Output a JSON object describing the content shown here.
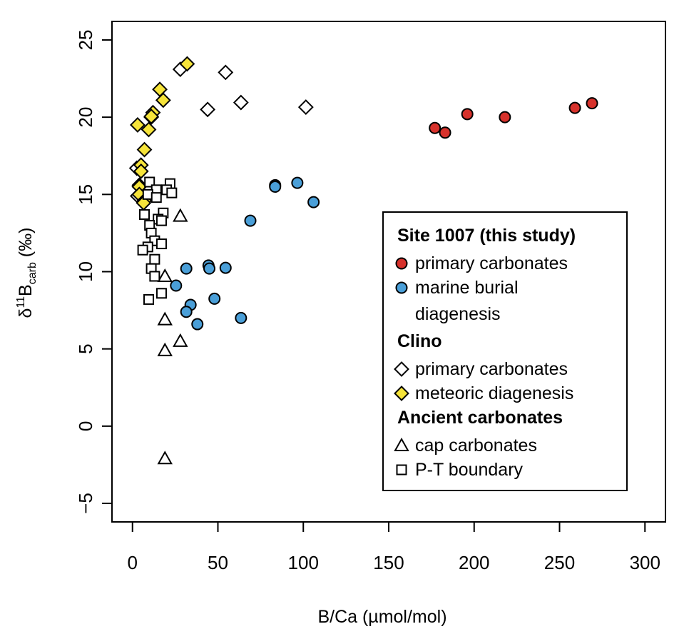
{
  "chart_data": {
    "type": "scatter",
    "title": "",
    "xlabel": "B/Ca (µmol/mol)",
    "ylabel": {
      "prefix": "δ",
      "superscript": "11",
      "main": "B",
      "subscript": "carb",
      "suffix": " (‰)"
    },
    "xlim": [
      -12,
      312
    ],
    "ylim": [
      -6.2,
      26.2
    ],
    "xticks": [
      0,
      50,
      100,
      150,
      200,
      250,
      300
    ],
    "yticks": [
      -5,
      0,
      5,
      10,
      15,
      20,
      25
    ],
    "grid": false,
    "legend_position": "center-right",
    "series": [
      {
        "name": "primary carbonates",
        "group": "Site 1007 (this study)",
        "marker": "circle",
        "color": "#d7322c",
        "points": [
          [
            177,
            19.3
          ],
          [
            183,
            19.0
          ],
          [
            196,
            20.2
          ],
          [
            218,
            20.0
          ],
          [
            259,
            20.6
          ],
          [
            269,
            20.9
          ]
        ]
      },
      {
        "name": "marine burial diagenesis",
        "group": "Site 1007 (this study)",
        "marker": "circle",
        "color": "#4a9fd8",
        "points": [
          [
            83.5,
            15.6
          ],
          [
            83.5,
            15.5
          ],
          [
            96.5,
            15.75
          ],
          [
            106,
            14.5
          ],
          [
            69,
            13.3
          ],
          [
            31.5,
            10.2
          ],
          [
            44.5,
            10.4
          ],
          [
            45,
            10.2
          ],
          [
            54.5,
            10.25
          ],
          [
            25.5,
            9.1
          ],
          [
            48,
            8.25
          ],
          [
            34,
            7.85
          ],
          [
            31.5,
            7.4
          ],
          [
            38,
            6.6
          ],
          [
            63.5,
            7.0
          ]
        ]
      },
      {
        "name": "primary carbonates",
        "group": "Clino",
        "marker": "diamond",
        "color": "#ffffff",
        "points": [
          [
            28,
            23.1
          ],
          [
            54.5,
            22.9
          ],
          [
            44,
            20.5
          ],
          [
            63.5,
            20.95
          ],
          [
            101.5,
            20.65
          ],
          [
            11,
            20.0
          ],
          [
            2.5,
            16.7
          ],
          [
            4,
            15.6
          ],
          [
            3,
            14.9
          ]
        ]
      },
      {
        "name": "meteoric diagenesis",
        "group": "Clino",
        "marker": "diamond",
        "color": "#f6e43a",
        "points": [
          [
            32,
            23.45
          ],
          [
            16,
            21.8
          ],
          [
            18,
            21.1
          ],
          [
            12,
            20.3
          ],
          [
            11,
            20.05
          ],
          [
            3,
            19.5
          ],
          [
            9.5,
            19.2
          ],
          [
            7,
            17.9
          ],
          [
            5,
            16.9
          ],
          [
            5,
            16.5
          ],
          [
            4,
            15.5
          ],
          [
            4,
            15.0
          ],
          [
            7,
            14.6
          ],
          [
            6.5,
            14.45
          ]
        ]
      },
      {
        "name": "cap carbonates",
        "group": "Ancient carbonates",
        "marker": "triangle",
        "color": "#ffffff",
        "points": [
          [
            28,
            13.6
          ],
          [
            19,
            9.7
          ],
          [
            19,
            6.9
          ],
          [
            28,
            5.5
          ],
          [
            19,
            4.9
          ],
          [
            19,
            -2.1
          ]
        ]
      },
      {
        "name": "P-T boundary",
        "group": "Ancient carbonates",
        "marker": "square",
        "color": "#ffffff",
        "points": [
          [
            10,
            15.8
          ],
          [
            22,
            15.7
          ],
          [
            14,
            15.3
          ],
          [
            20,
            15.3
          ],
          [
            23,
            15.1
          ],
          [
            9,
            15.0
          ],
          [
            14,
            14.8
          ],
          [
            7,
            13.7
          ],
          [
            18,
            13.8
          ],
          [
            15,
            13.4
          ],
          [
            17,
            13.3
          ],
          [
            10,
            13.0
          ],
          [
            11,
            12.5
          ],
          [
            13,
            12.0
          ],
          [
            9,
            11.6
          ],
          [
            17,
            11.8
          ],
          [
            6,
            11.4
          ],
          [
            13,
            10.8
          ],
          [
            11,
            10.2
          ],
          [
            13,
            9.7
          ],
          [
            17,
            8.6
          ],
          [
            9.5,
            8.2
          ]
        ]
      }
    ],
    "legend": [
      {
        "kind": "heading",
        "text": "Site 1007 (this study)"
      },
      {
        "kind": "entry",
        "marker": "circle",
        "color": "#d7322c",
        "text": "primary carbonates"
      },
      {
        "kind": "entry",
        "marker": "circle",
        "color": "#4a9fd8",
        "text": "marine burial"
      },
      {
        "kind": "continuation",
        "text": "diagenesis"
      },
      {
        "kind": "heading",
        "text": "Clino"
      },
      {
        "kind": "entry",
        "marker": "diamond",
        "color": "#ffffff",
        "text": "primary carbonates"
      },
      {
        "kind": "entry",
        "marker": "diamond",
        "color": "#f6e43a",
        "text": "meteoric diagenesis"
      },
      {
        "kind": "heading",
        "text": "Ancient carbonates"
      },
      {
        "kind": "entry",
        "marker": "triangle",
        "color": "#ffffff",
        "text": "cap carbonates"
      },
      {
        "kind": "entry",
        "marker": "square",
        "color": "#ffffff",
        "text": "P-T boundary"
      }
    ]
  }
}
